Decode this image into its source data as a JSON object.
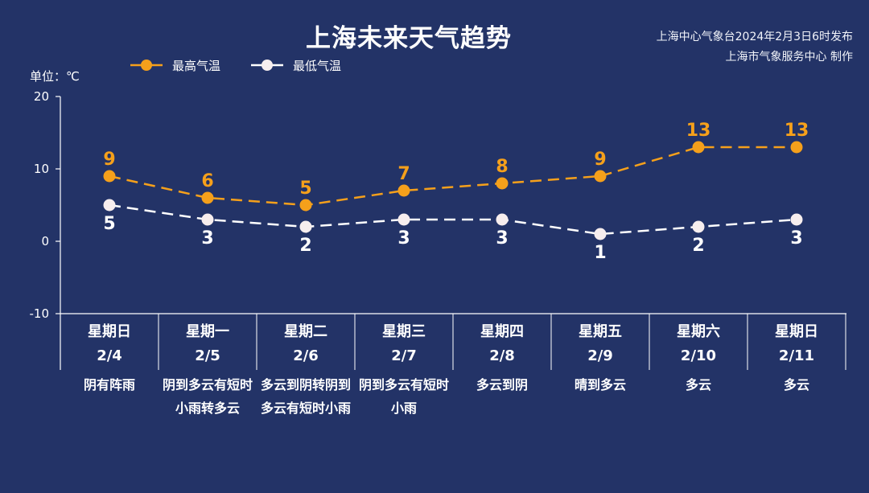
{
  "header": {
    "title": "上海未来天气趋势",
    "credit_line1": "上海中心气象台2024年2月3日6时发布",
    "credit_line2": "上海市气象服务中心 制作"
  },
  "legend": {
    "high": "最高气温",
    "low": "最低气温"
  },
  "unit_label": "单位：℃",
  "colors": {
    "background": "#233367",
    "high": "#f5a01b",
    "low": "#ffffff"
  },
  "chart_data": {
    "type": "line",
    "title": "上海未来天气趋势",
    "ylabel": "单位：℃",
    "ylim": [
      -10,
      20
    ],
    "yticks": [
      "20",
      "10",
      "0",
      "-10"
    ],
    "legend_position": "top-left",
    "categories": [
      "星期日",
      "星期一",
      "星期二",
      "星期三",
      "星期四",
      "星期五",
      "星期六",
      "星期日"
    ],
    "dates": [
      "2/4",
      "2/5",
      "2/6",
      "2/7",
      "2/8",
      "2/9",
      "2/10",
      "2/11"
    ],
    "weather": [
      "阴有阵雨",
      "阴到多云有短时小雨转多云",
      "多云到阴转阴到多云有短时小雨",
      "阴到多云有短时小雨",
      "多云到阴",
      "晴到多云",
      "多云",
      "多云"
    ],
    "series": [
      {
        "name": "最高气温",
        "values": [
          9,
          6,
          5,
          7,
          8,
          9,
          13,
          13
        ]
      },
      {
        "name": "最低气温",
        "values": [
          5,
          3,
          2,
          3,
          3,
          1,
          2,
          3
        ]
      }
    ]
  }
}
